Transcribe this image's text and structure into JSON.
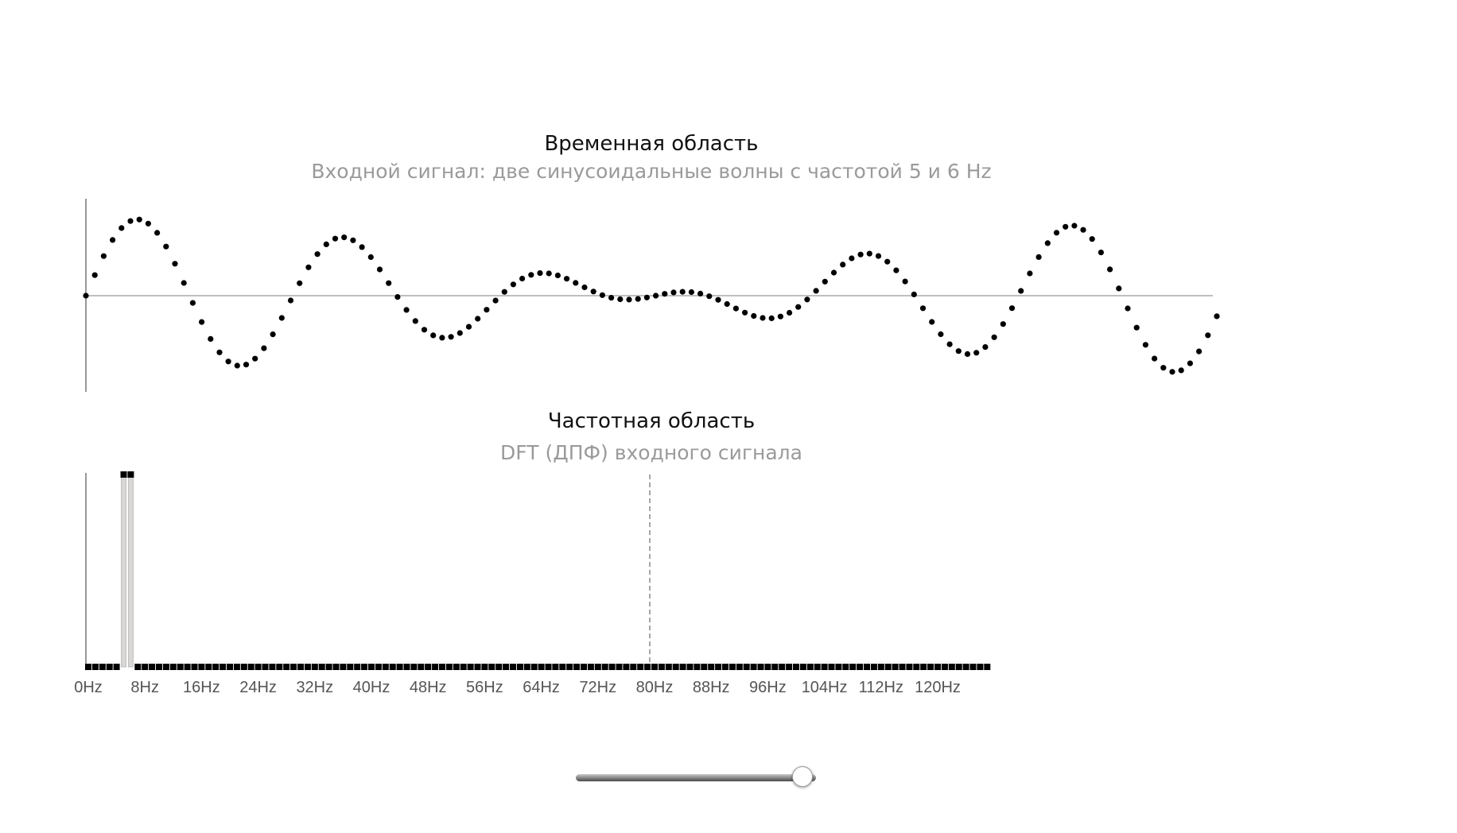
{
  "chart_data": [
    {
      "type": "scatter",
      "title": "Временная область",
      "subtitle": "Входной сигнал: две синусоидальные волны с частотой 5 и 6 Hz",
      "series": [
        {
          "components": [
            {
              "frequency": 5,
              "amplitude": 1
            },
            {
              "frequency": 6,
              "amplitude": 1
            }
          ],
          "samples": 128,
          "duration": 1.0
        }
      ],
      "ylim": [
        -2,
        2
      ],
      "marker": "dot",
      "color": "#000000",
      "grid": false
    },
    {
      "type": "bar",
      "title": "Частотная область",
      "subtitle": "DFT (ДПФ) входного сигнала",
      "xlabel": "",
      "ylabel": "",
      "bins": 128,
      "bin_step_hz": 1,
      "nyquist_hz": 64,
      "peaks": [
        {
          "frequency": 5,
          "magnitude": 1
        },
        {
          "frequency": 6,
          "magnitude": 1
        }
      ],
      "ylim": [
        0,
        1
      ],
      "tick_labels": [
        "0Hz",
        "8Hz",
        "16Hz",
        "24Hz",
        "32Hz",
        "40Hz",
        "48Hz",
        "56Hz",
        "64Hz",
        "72Hz",
        "80Hz",
        "88Hz",
        "96Hz",
        "104Hz",
        "112Hz",
        "120Hz"
      ],
      "marker": "square",
      "color": "#000000",
      "bar_color": "#d9d6d6"
    }
  ],
  "slider": {
    "value": 0.94
  }
}
